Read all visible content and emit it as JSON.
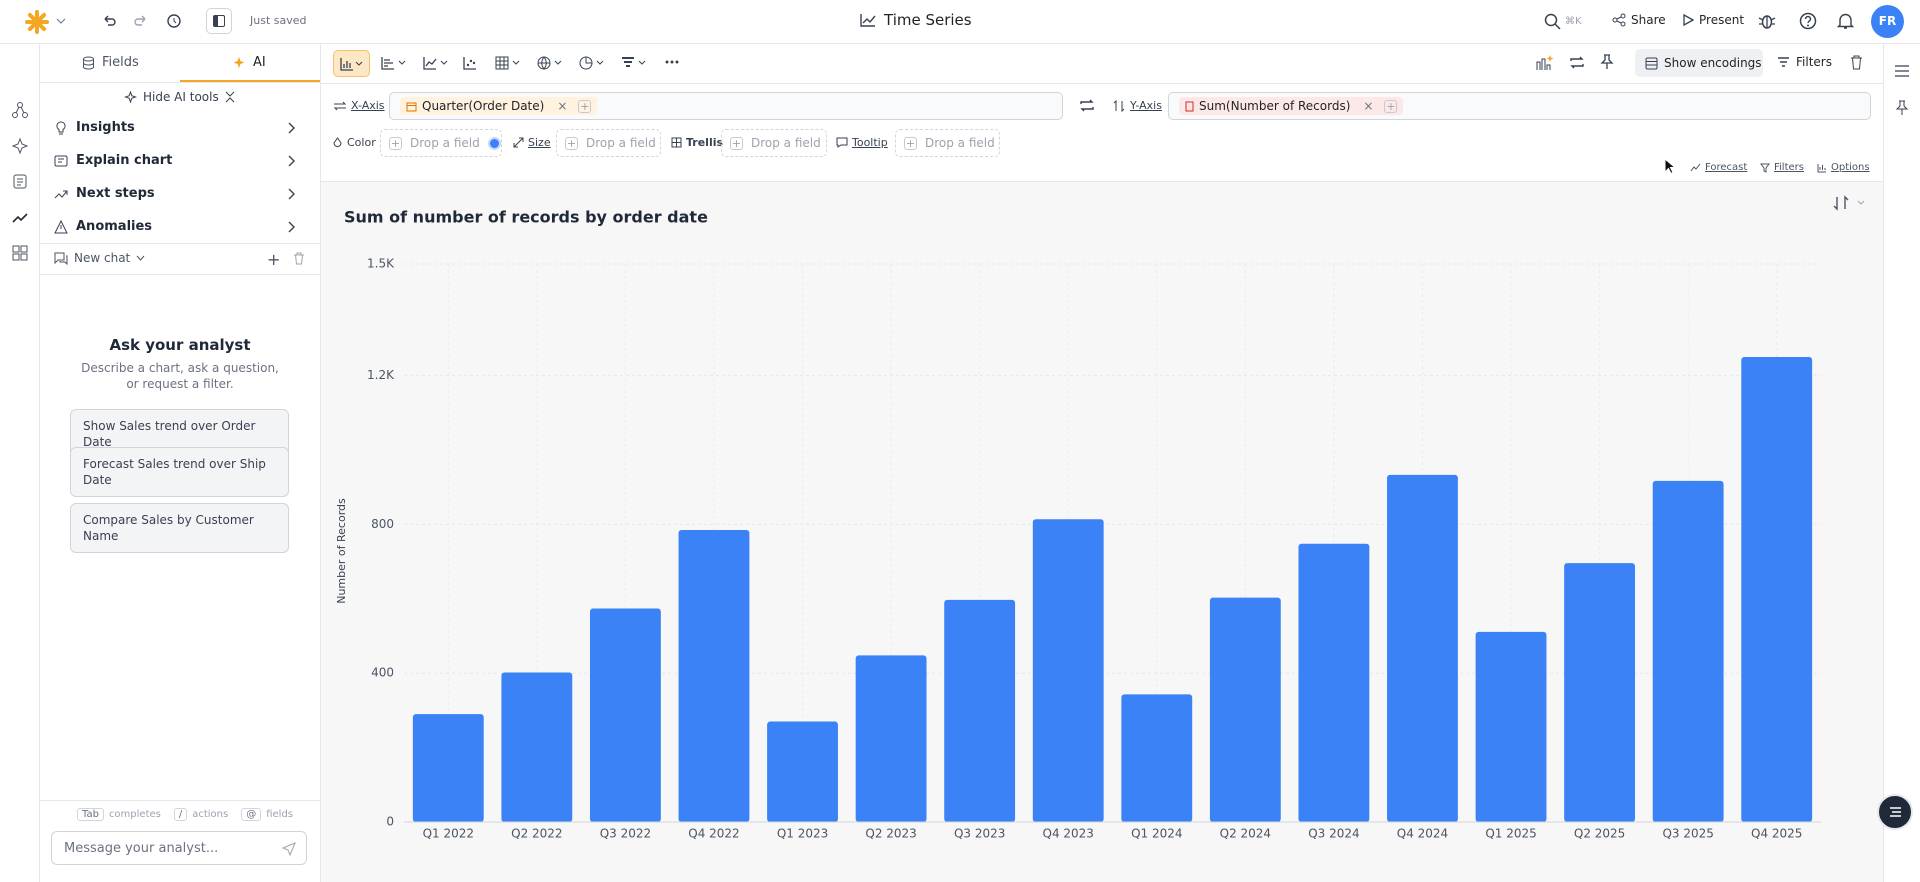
{
  "header": {
    "status": "Just saved",
    "title": "Time Series",
    "search_shortcut": "⌘K",
    "share": "Share",
    "present": "Present",
    "avatar": "FR"
  },
  "sidebar": {
    "tabs": [
      "Fields",
      "AI"
    ],
    "hide_ai_tools": "Hide AI tools",
    "menu": [
      "Insights",
      "Explain chart",
      "Next steps",
      "Anomalies"
    ],
    "new_chat": "New chat",
    "prompt_title": "Ask your analyst",
    "prompt_text": "Describe a chart, ask a question, or request a filter.",
    "suggestions": [
      "Show Sales trend over Order Date",
      "Forecast Sales trend over Ship Date",
      "Compare Sales by Customer Name"
    ],
    "hints": [
      "Tab",
      "completes",
      "/",
      "actions",
      "@",
      "fields"
    ],
    "input_placeholder": "Message your analyst..."
  },
  "toolbar": {
    "show_encodings": "Show encodings",
    "filters": "Filters"
  },
  "encodings": {
    "x_axis": "X-Axis",
    "x_field": "Quarter(Order Date)",
    "y_axis": "Y-Axis",
    "y_field": "Sum(Number of Records)",
    "color": "Color",
    "size": "Size",
    "trellis": "Trellis",
    "tooltip": "Tooltip",
    "drop": "Drop a field"
  },
  "chart_options": [
    "Forecast",
    "Filters",
    "Options"
  ],
  "chart_data": {
    "type": "bar",
    "title": "Sum of number of records by order date",
    "y_label": "Number of Records",
    "categories": [
      "Q1 2022",
      "Q2 2022",
      "Q3 2022",
      "Q4 2022",
      "Q1 2023",
      "Q2 2023",
      "Q3 2023",
      "Q4 2023",
      "Q1 2024",
      "Q2 2024",
      "Q3 2024",
      "Q4 2024",
      "Q1 2025",
      "Q2 2025",
      "Q3 2025",
      "Q4 2025"
    ],
    "values": [
      290,
      402,
      574,
      785,
      270,
      448,
      597,
      814,
      343,
      603,
      748,
      933,
      511,
      696,
      917,
      1250
    ],
    "color": "#3b82f6",
    "ylim": [
      0,
      1500
    ],
    "yticks": [
      0,
      400,
      800,
      {
        "value": 1200,
        "label": "1.2K"
      },
      {
        "value": 1500,
        "label": "1.5K"
      }
    ],
    "grid": true
  }
}
